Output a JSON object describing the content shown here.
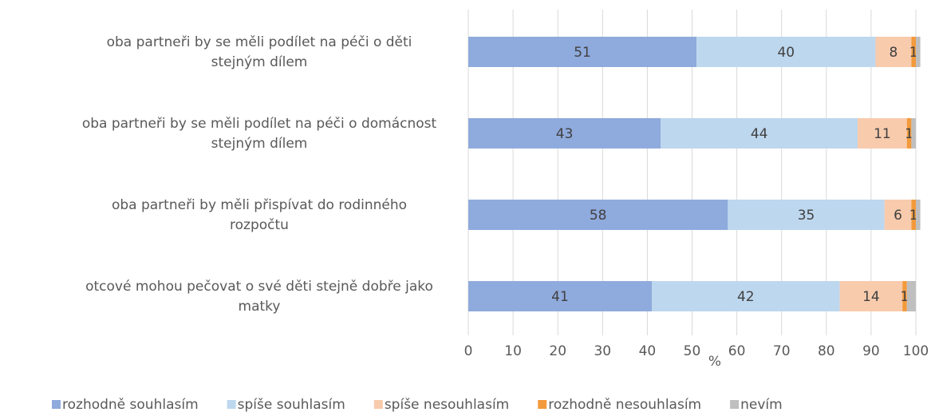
{
  "chart_data": {
    "type": "stacked_barh",
    "categories": [
      [
        "oba partneři by se měli podílet na péči o děti",
        "stejným dílem"
      ],
      [
        "oba partneři by se měli podílet na péči o domácnost",
        "stejným dílem"
      ],
      [
        "oba partneři by měli přispívat do rodinného",
        "rozpočtu"
      ],
      [
        "otcové mohou pečovat o své děti stejně dobře jako",
        "matky"
      ]
    ],
    "series": [
      {
        "name": "rozhodně souhlasím",
        "color": "#8faadc",
        "values": [
          51,
          43,
          58,
          41
        ],
        "data_labels": true
      },
      {
        "name": "spíše souhlasím",
        "color": "#bdd7ee",
        "values": [
          40,
          44,
          35,
          42
        ],
        "data_labels": true
      },
      {
        "name": "spíše nesouhlasím",
        "color": "#f8cbad",
        "values": [
          8,
          11,
          6,
          14
        ],
        "data_labels": true
      },
      {
        "name": "rozhodně nesouhlasím",
        "color": "#f39a3c",
        "values": [
          1,
          1,
          1,
          1
        ],
        "data_labels": true
      },
      {
        "name": "nevím",
        "color": "#bfbfbf",
        "values": [
          1,
          1,
          1,
          2
        ],
        "data_labels": false
      }
    ],
    "xlabel": "%",
    "xlim": [
      0,
      100
    ],
    "xticks": [
      0,
      10,
      20,
      30,
      40,
      50,
      60,
      70,
      80,
      90,
      100
    ],
    "grid": true,
    "legend": "bottom"
  }
}
